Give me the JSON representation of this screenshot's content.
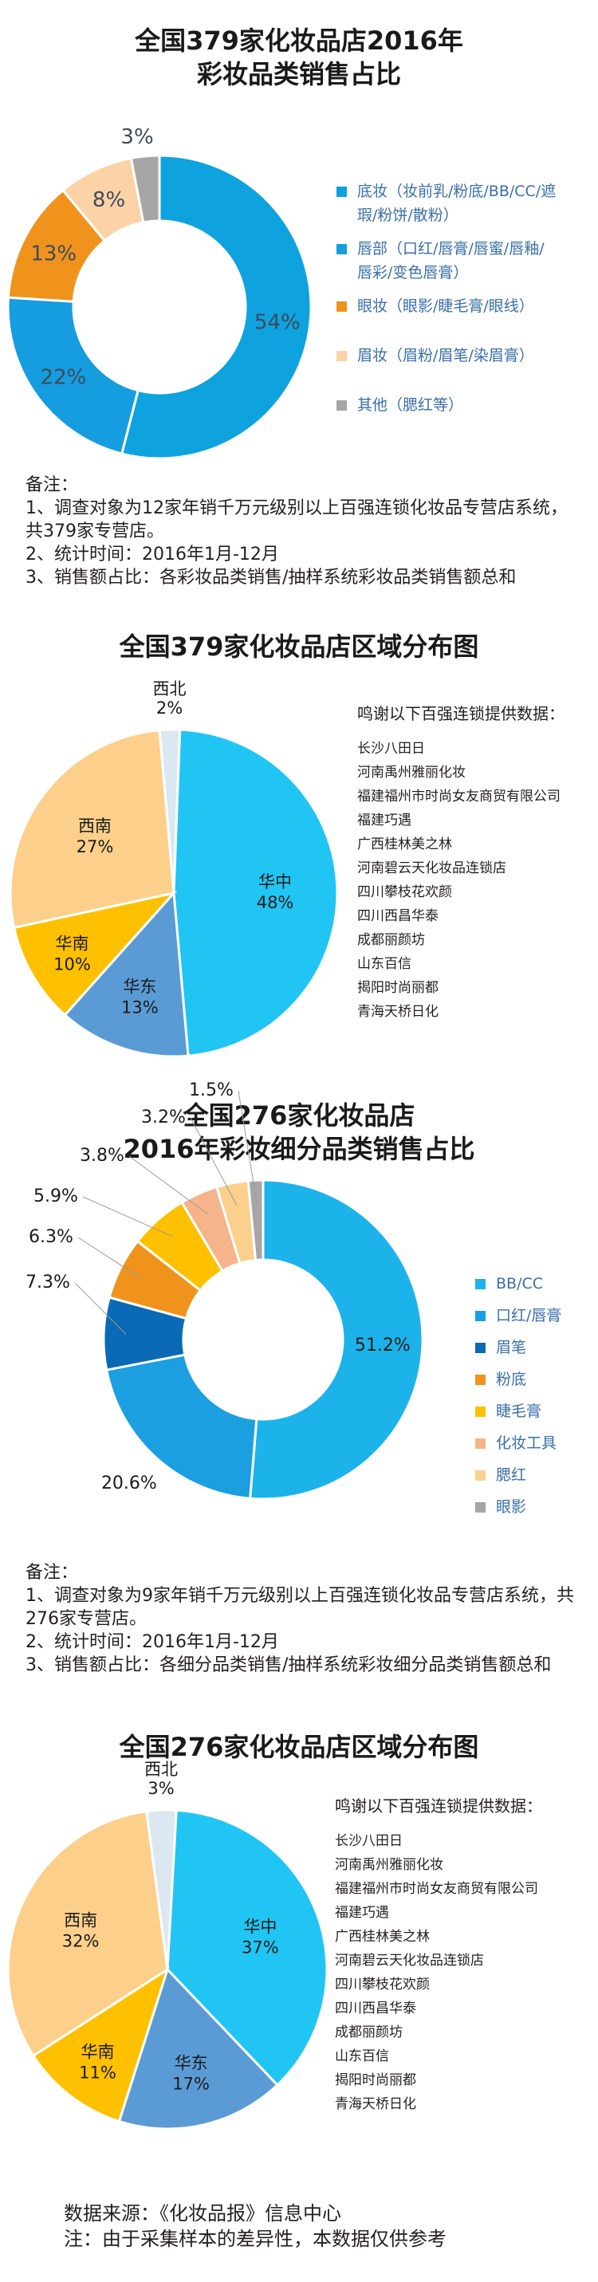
{
  "chart_data": [
    {
      "type": "pie",
      "title": "全国379家化妆品店2016年\n彩妆品类销售占比",
      "categories": [
        "底妆（妆前乳/粉底/BB/CC/遮瑕/粉饼/散粉）",
        "唇部（口红/唇膏/唇蜜/唇釉/唇彩/变色唇膏）",
        "眼妆（眼影/睫毛膏/眼线）",
        "眉妆（眉粉/眉笔/染眉膏）",
        "其他（腮红等）"
      ],
      "values": [
        54,
        22,
        13,
        8,
        3
      ],
      "labels": [
        "54%",
        "22%",
        "13%",
        "8%",
        "3%"
      ],
      "colors": [
        "#0ea2df",
        "#159de0",
        "#f0931c",
        "#fcd3a6",
        "#a6a6a6"
      ],
      "legend": [
        "底妆（妆前乳/粉底/BB/CC/遮瑕/粉饼/散粉）",
        "唇部（口红/唇膏/唇蜜/唇釉/唇彩/变色唇膏）",
        "眼妆（眼影/睫毛膏/眼线）",
        "眉妆（眉粉/眉笔/染眉膏）",
        "其他（腮红等）"
      ]
    },
    {
      "type": "pie",
      "title": "全国379家化妆品店区域分布图",
      "categories": [
        "华中",
        "华东",
        "华南",
        "西南",
        "西北"
      ],
      "values": [
        48,
        13,
        10,
        27,
        2
      ],
      "colors": [
        "#21c5f4",
        "#5b9bd5",
        "#ffc000",
        "#fcd08b",
        "#dbe7f1"
      ]
    },
    {
      "type": "pie",
      "title": "全国276家化妆品店\n2016年彩妆细分品类销售占比",
      "categories": [
        "BB/CC",
        "口红/唇膏",
        "眉笔",
        "粉底",
        "睫毛膏",
        "化妆工具",
        "腮红",
        "眼影"
      ],
      "values": [
        51.2,
        20.6,
        7.3,
        6.3,
        5.9,
        3.8,
        3.2,
        1.5
      ],
      "labels": [
        "51.2%",
        "20.6%",
        "7.3%",
        "6.3%",
        "5.9%",
        "3.8%",
        "3.2%",
        "1.5%"
      ],
      "colors": [
        "#1bb3ea",
        "#1b9fe0",
        "#0a6ab5",
        "#f0931c",
        "#ffc000",
        "#f6b48a",
        "#fbd08c",
        "#a6a6a6"
      ]
    },
    {
      "type": "pie",
      "title": "全国276家化妆品店区域分布图",
      "categories": [
        "华中",
        "华东",
        "华南",
        "西南",
        "西北"
      ],
      "values": [
        37,
        17,
        11,
        32,
        3
      ],
      "colors": [
        "#21c5f4",
        "#5b9bd5",
        "#ffc000",
        "#fcd08b",
        "#dbe7f1"
      ]
    }
  ],
  "chart1": {
    "title_l1": "全国379家化妆品店2016年",
    "title_l2": "彩妆品类销售占比",
    "legend": [
      "底妆（妆前乳/粉底/BB/CC/遮瑕/粉饼/散粉）",
      "唇部（口红/唇膏/唇蜜/唇釉/唇彩/变色唇膏）",
      "眼妆（眼影/睫毛膏/眼线）",
      "眉妆（眉粉/眉笔/染眉膏）",
      "其他（腮红等）"
    ],
    "legend_lines": [
      [
        "底妆（妆前乳/粉底/BB/CC/遮",
        "瑕/粉饼/散粉）"
      ],
      [
        "唇部（口红/唇膏/唇蜜/唇釉/",
        "唇彩/变色唇膏）"
      ],
      [
        "眼妆（眼影/睫毛膏/眼线）"
      ],
      [
        "眉妆（眉粉/眉笔/染眉膏）"
      ],
      [
        "其他（腮红等）"
      ]
    ],
    "notes": [
      "备注：",
      "1、调查对象为12家年销千万元级别以上百强连锁化妆品专营店系统，共379家专营店。",
      "2、统计时间：2016年1月-12月",
      "3、销售额占比：各彩妆品类销售/抽样系统彩妆品类销售额总和"
    ]
  },
  "chart2": {
    "title": "全国379家化妆品店区域分布图",
    "thanks": {
      "head": "鸣谢以下百强连锁提供数据：",
      "items": [
        "长沙八田日",
        "河南禹州雅丽化妆",
        "福建福州市时尚女友商贸有限公司",
        "福建巧遇",
        "广西桂林美之林",
        "河南碧云天化妆品连锁店",
        "四川攀枝花欢颜",
        "四川西昌华泰",
        "成都丽颜坊",
        "山东百信",
        "揭阳时尚丽都",
        "青海天桥日化"
      ]
    }
  },
  "chart3": {
    "title_l1": "全国276家化妆品店",
    "title_l2": "2016年彩妆细分品类销售占比",
    "notes": [
      "备注：",
      "1、调查对象为9家年销千万元级别以上百强连锁化妆品专营店系统，共276家专营店。",
      "2、统计时间：2016年1月-12月",
      "3、销售额占比：各细分品类销售/抽样系统彩妆细分品类销售额总和"
    ]
  },
  "chart4": {
    "title": "全国276家化妆品店区域分布图",
    "thanks": {
      "head": "鸣谢以下百强连锁提供数据：",
      "items": [
        "长沙八田日",
        "河南禹州雅丽化妆",
        "福建福州市时尚女友商贸有限公司",
        "福建巧遇",
        "广西桂林美之林",
        "河南碧云天化妆品连锁店",
        "四川攀枝花欢颜",
        "四川西昌华泰",
        "成都丽颜坊",
        "山东百信",
        "揭阳时尚丽都",
        "青海天桥日化"
      ]
    }
  },
  "footer": {
    "source": "数据来源：《化妆品报》信息中心",
    "note": "注：由于采集样本的差异性，本数据仅供参考"
  }
}
